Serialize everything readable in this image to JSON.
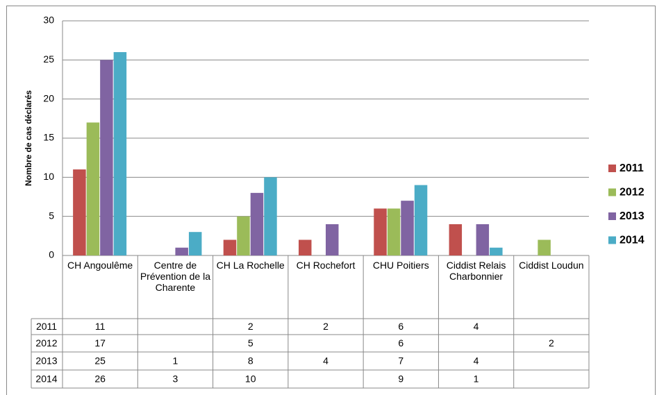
{
  "chart_data": {
    "type": "bar",
    "y_label": "Nombre de cas déclarés",
    "categories": [
      "CH Angoulême",
      "Centre de Prévention de la Charente",
      "CH La Rochelle",
      "CH Rochefort",
      "CHU Poitiers",
      "Ciddist Relais Charbonnier",
      "Ciddist Loudun"
    ],
    "series": [
      {
        "name": "2011",
        "color": "#c0504d",
        "values": [
          11,
          null,
          2,
          2,
          6,
          4,
          null
        ]
      },
      {
        "name": "2012",
        "color": "#9bbb59",
        "values": [
          17,
          null,
          5,
          null,
          6,
          null,
          2
        ]
      },
      {
        "name": "2013",
        "color": "#8064a2",
        "values": [
          25,
          1,
          8,
          4,
          7,
          4,
          null
        ]
      },
      {
        "name": "2014",
        "color": "#4bacc6",
        "values": [
          26,
          3,
          10,
          null,
          9,
          1,
          null
        ]
      }
    ],
    "ylim": [
      0,
      30
    ],
    "yticks": [
      0,
      5,
      10,
      15,
      20,
      25,
      30
    ],
    "grid": true,
    "legend": "right",
    "data_table": true
  }
}
